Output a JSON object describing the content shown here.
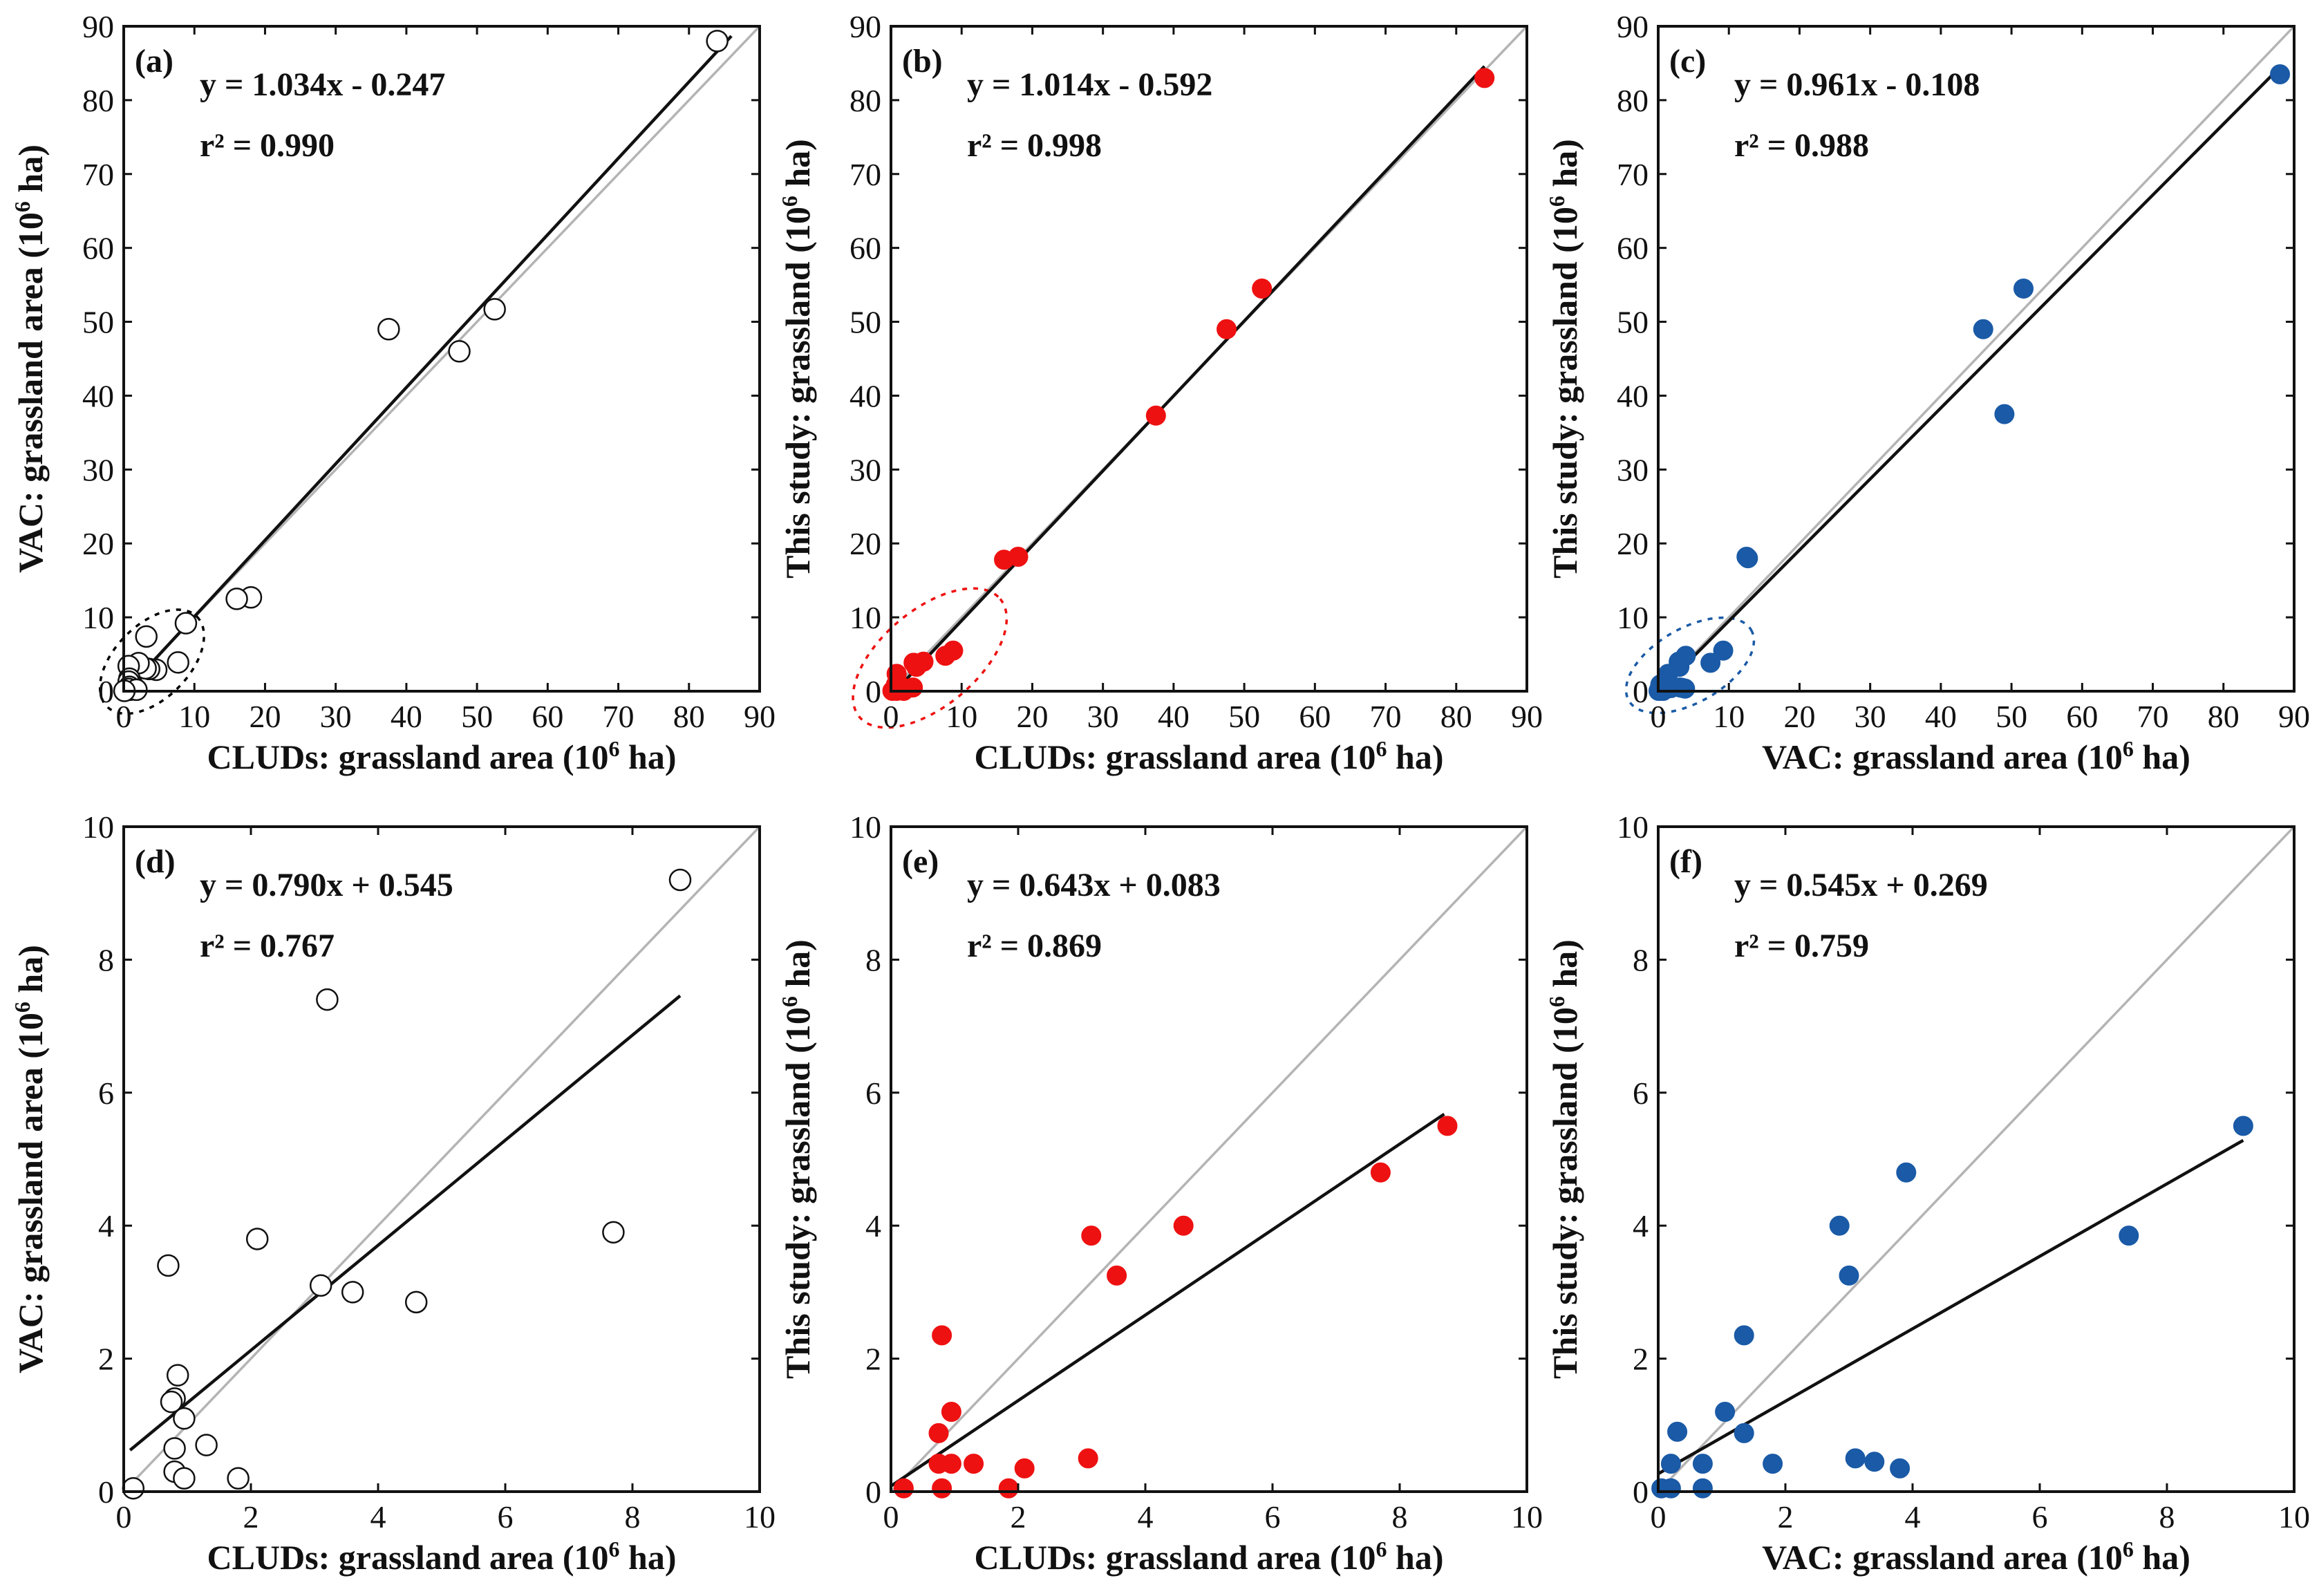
{
  "chart_data": [
    {
      "type": "scatter",
      "panel_label": "(a)",
      "xlabel": "CLUDs: grassland area (10⁶ ha)",
      "ylabel": "VAC: grassland area (10⁶ ha)",
      "xlim": [
        0,
        90
      ],
      "ylim": [
        0,
        90
      ],
      "xticks": [
        0,
        10,
        20,
        30,
        40,
        50,
        60,
        70,
        80,
        90
      ],
      "yticks": [
        0,
        10,
        20,
        30,
        40,
        50,
        60,
        70,
        80,
        90
      ],
      "marker": "open-circle",
      "color": "#000000",
      "equation": "y = 1.034x - 0.247",
      "r2_label": "r² = 0.990",
      "fit": {
        "slope": 1.034,
        "intercept": -0.247,
        "x_range": [
          0,
          86
        ]
      },
      "has_one_to_one_line": true,
      "cluster_ellipse": {
        "cx": 4,
        "cy": 4,
        "rx": 9,
        "ry": 5,
        "angle_deg": 45
      },
      "points": [
        [
          84,
          88
        ],
        [
          52.5,
          51.7
        ],
        [
          47.5,
          46
        ],
        [
          37.5,
          49
        ],
        [
          18,
          12.7
        ],
        [
          16,
          12.5
        ],
        [
          8.8,
          9.2
        ],
        [
          7.7,
          3.9
        ],
        [
          4.6,
          2.9
        ],
        [
          3.6,
          3
        ],
        [
          3.2,
          7.4
        ],
        [
          3.1,
          3.1
        ],
        [
          2.1,
          3.8
        ],
        [
          1.3,
          0.7
        ],
        [
          0.9,
          1.1
        ],
        [
          0.7,
          3.4
        ],
        [
          0.8,
          1.7
        ],
        [
          0.7,
          1.3
        ],
        [
          0.8,
          0.6
        ],
        [
          0.9,
          0.2
        ],
        [
          0.7,
          0.3
        ],
        [
          1.8,
          0.2
        ],
        [
          0.1,
          0.05
        ]
      ]
    },
    {
      "type": "scatter",
      "panel_label": "(b)",
      "xlabel": "CLUDs: grassland area (10⁶ ha)",
      "ylabel": "This study: grassland (10⁶ ha)",
      "xlim": [
        0,
        90
      ],
      "ylim": [
        0,
        90
      ],
      "xticks": [
        0,
        10,
        20,
        30,
        40,
        50,
        60,
        70,
        80,
        90
      ],
      "yticks": [
        0,
        10,
        20,
        30,
        40,
        50,
        60,
        70,
        80,
        90
      ],
      "marker": "filled-circle",
      "color": "#ee1111",
      "equation": "y = 1.014x - 0.592",
      "r2_label": "r² = 0.998",
      "fit": {
        "slope": 1.014,
        "intercept": -0.592,
        "x_range": [
          0,
          84
        ]
      },
      "has_one_to_one_line": true,
      "cluster_ellipse": {
        "cx": 5.5,
        "cy": 4.5,
        "rx": 13,
        "ry": 6.5,
        "angle_deg": 40
      },
      "points": [
        [
          84,
          83
        ],
        [
          52.5,
          54.5
        ],
        [
          47.5,
          49
        ],
        [
          37.5,
          37.3
        ],
        [
          18,
          18.2
        ],
        [
          16,
          17.8
        ],
        [
          8.8,
          5.5
        ],
        [
          7.7,
          4.8
        ],
        [
          4.6,
          4
        ],
        [
          3.6,
          3.3
        ],
        [
          3.2,
          3.85
        ],
        [
          3.1,
          0.5
        ],
        [
          2.1,
          0.35
        ],
        [
          1.3,
          0.42
        ],
        [
          0.9,
          1.2
        ],
        [
          0.8,
          2.35
        ],
        [
          0.7,
          0.88
        ],
        [
          0.9,
          0.4
        ],
        [
          0.7,
          0.42
        ],
        [
          0.8,
          0.05
        ],
        [
          1.8,
          0.05
        ],
        [
          0.2,
          0.05
        ]
      ]
    },
    {
      "type": "scatter",
      "panel_label": "(c)",
      "xlabel": "VAC: grassland area (10⁶ ha)",
      "ylabel": "This study: grassland (10⁶ ha)",
      "xlim": [
        0,
        90
      ],
      "ylim": [
        0,
        90
      ],
      "xticks": [
        0,
        10,
        20,
        30,
        40,
        50,
        60,
        70,
        80,
        90
      ],
      "yticks": [
        0,
        10,
        20,
        30,
        40,
        50,
        60,
        70,
        80,
        90
      ],
      "marker": "filled-circle",
      "color": "#1a5aa6",
      "equation": "y = 0.961x - 0.108",
      "r2_label": "r² = 0.988",
      "fit": {
        "slope": 0.961,
        "intercept": -0.108,
        "x_range": [
          0,
          88
        ]
      },
      "has_one_to_one_line": true,
      "cluster_ellipse": {
        "cx": 4.5,
        "cy": 3.5,
        "rx": 10,
        "ry": 5,
        "angle_deg": 30
      },
      "points": [
        [
          88,
          83.5
        ],
        [
          51.7,
          54.5
        ],
        [
          46,
          49
        ],
        [
          49,
          37.5
        ],
        [
          12.7,
          18
        ],
        [
          12.5,
          18.2
        ],
        [
          9.2,
          5.5
        ],
        [
          7.4,
          3.85
        ],
        [
          3.9,
          4.8
        ],
        [
          2.9,
          4
        ],
        [
          3,
          3.3
        ],
        [
          3.8,
          0.35
        ],
        [
          3.4,
          0.45
        ],
        [
          3.1,
          0.5
        ],
        [
          1.8,
          0.42
        ],
        [
          1.4,
          2.35
        ],
        [
          1.1,
          1.2
        ],
        [
          1.3,
          0.88
        ],
        [
          0.7,
          0.4
        ],
        [
          0.3,
          0.9
        ],
        [
          0.2,
          0.4
        ],
        [
          0.7,
          0.05
        ],
        [
          0.2,
          0.05
        ],
        [
          0.05,
          0.05
        ]
      ]
    },
    {
      "type": "scatter",
      "panel_label": "(d)",
      "xlabel": "CLUDs: grassland area (10⁶ ha)",
      "ylabel": "VAC: grassland area (10⁶ ha)",
      "xlim": [
        0,
        10
      ],
      "ylim": [
        0,
        10
      ],
      "xticks": [
        0,
        2,
        4,
        6,
        8,
        10
      ],
      "yticks": [
        0,
        2,
        4,
        6,
        8,
        10
      ],
      "marker": "open-circle",
      "color": "#000000",
      "equation": "y = 0.790x + 0.545",
      "r2_label": "r² = 0.767",
      "fit": {
        "slope": 0.79,
        "intercept": 0.545,
        "x_range": [
          0.1,
          8.75
        ]
      },
      "has_one_to_one_line": true,
      "points": [
        [
          8.75,
          9.2
        ],
        [
          7.7,
          3.9
        ],
        [
          4.6,
          2.85
        ],
        [
          3.6,
          3.0
        ],
        [
          3.2,
          7.4
        ],
        [
          3.1,
          3.1
        ],
        [
          2.1,
          3.8
        ],
        [
          0.7,
          3.4
        ],
        [
          0.85,
          1.75
        ],
        [
          0.8,
          1.4
        ],
        [
          0.75,
          1.35
        ],
        [
          0.95,
          1.1
        ],
        [
          1.3,
          0.7
        ],
        [
          0.8,
          0.65
        ],
        [
          0.8,
          0.3
        ],
        [
          0.95,
          0.2
        ],
        [
          1.8,
          0.2
        ],
        [
          0.15,
          0.05
        ]
      ]
    },
    {
      "type": "scatter",
      "panel_label": "(e)",
      "xlabel": "CLUDs: grassland area (10⁶ ha)",
      "ylabel": "This study: grassland (10⁶ ha)",
      "xlim": [
        0,
        10
      ],
      "ylim": [
        0,
        10
      ],
      "xticks": [
        0,
        2,
        4,
        6,
        8,
        10
      ],
      "yticks": [
        0,
        2,
        4,
        6,
        8,
        10
      ],
      "marker": "filled-circle",
      "color": "#ee1111",
      "equation": "y = 0.643x + 0.083",
      "r2_label": "r² = 0.869",
      "fit": {
        "slope": 0.643,
        "intercept": 0.083,
        "x_range": [
          0,
          8.7
        ]
      },
      "has_one_to_one_line": true,
      "points": [
        [
          8.75,
          5.5
        ],
        [
          7.7,
          4.8
        ],
        [
          4.6,
          4.0
        ],
        [
          3.55,
          3.25
        ],
        [
          3.15,
          3.85
        ],
        [
          3.1,
          0.5
        ],
        [
          2.1,
          0.35
        ],
        [
          1.3,
          0.42
        ],
        [
          0.95,
          1.2
        ],
        [
          0.8,
          2.35
        ],
        [
          0.75,
          0.88
        ],
        [
          0.95,
          0.42
        ],
        [
          0.75,
          0.42
        ],
        [
          0.8,
          0.05
        ],
        [
          1.85,
          0.05
        ],
        [
          0.2,
          0.05
        ]
      ]
    },
    {
      "type": "scatter",
      "panel_label": "(f)",
      "xlabel": "VAC: grassland area (10⁶ ha)",
      "ylabel": "This study: grassland (10⁶ ha)",
      "xlim": [
        0,
        10
      ],
      "ylim": [
        0,
        10
      ],
      "xticks": [
        0,
        2,
        4,
        6,
        8,
        10
      ],
      "yticks": [
        0,
        2,
        4,
        6,
        8,
        10
      ],
      "marker": "filled-circle",
      "color": "#1a5aa6",
      "equation": "y = 0.545x + 0.269",
      "r2_label": "r² = 0.759",
      "fit": {
        "slope": 0.545,
        "intercept": 0.269,
        "x_range": [
          0,
          9.2
        ]
      },
      "has_one_to_one_line": true,
      "points": [
        [
          9.2,
          5.5
        ],
        [
          7.4,
          3.85
        ],
        [
          3.9,
          4.8
        ],
        [
          2.85,
          4.0
        ],
        [
          3.0,
          3.25
        ],
        [
          3.8,
          0.35
        ],
        [
          3.4,
          0.45
        ],
        [
          3.1,
          0.5
        ],
        [
          1.8,
          0.42
        ],
        [
          1.35,
          2.35
        ],
        [
          1.05,
          1.2
        ],
        [
          1.35,
          0.88
        ],
        [
          0.7,
          0.42
        ],
        [
          0.3,
          0.9
        ],
        [
          0.2,
          0.42
        ],
        [
          0.7,
          0.05
        ],
        [
          0.2,
          0.05
        ],
        [
          0.05,
          0.05
        ]
      ]
    }
  ]
}
